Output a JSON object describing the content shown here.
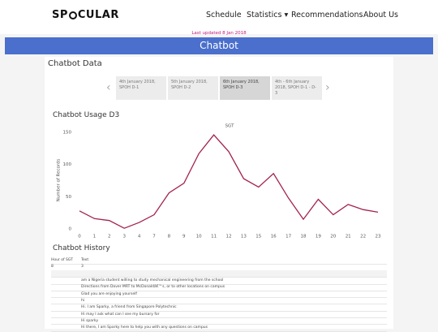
{
  "header": {
    "logo_left": "SP",
    "logo_right": "CULAR",
    "nav": [
      "Schedule",
      "Statistics",
      "Recommendations",
      "About Us"
    ]
  },
  "last_updated": "Last updated 8 Jan 2018",
  "banner": "Chatbot",
  "section_title": "Chatbot Data",
  "tabs": [
    "4th January 2018, SPOH D-1",
    "5th January 2018, SPOH D-2",
    "6th January 2018, SPOH D-3",
    "4th - 6th January 2018, SPOH D-1 - D-3"
  ],
  "chart_data": {
    "type": "line",
    "title": "Chatbot Usage D3",
    "subtitle": "SGT",
    "y_label": "Number of Records",
    "categories": [
      "0",
      "1",
      "2",
      "3",
      "4",
      "7",
      "8",
      "9",
      "10",
      "11",
      "12",
      "13",
      "15",
      "16",
      "17",
      "18",
      "19",
      "20",
      "21",
      "22",
      "23"
    ],
    "series": [
      {
        "name": "Records",
        "color": "#a3234f",
        "values": [
          28,
          16,
          13,
          1,
          10,
          22,
          56,
          71,
          117,
          146,
          120,
          78,
          65,
          86,
          48,
          15,
          46,
          22,
          38,
          30,
          26
        ]
      }
    ],
    "ylim": [
      0,
      150
    ],
    "yticks": [
      0,
      50,
      100,
      150
    ],
    "grid": false
  },
  "history": {
    "title": "Chatbot History",
    "columns": [
      "Hour of SGT",
      "Text"
    ],
    "first_row": [
      "8",
      "3"
    ],
    "texts": [
      "am a Nigeria student willing to study mechanical engineering from the school",
      "Directions from Dover MRT to McDonaldâ€™s, or to other locations on campus",
      "Glad you are enjoying yourself",
      "hi",
      "Hi. I am Sparky, a friend from Singapore Polytechnic",
      "Hi may I ask what can I see my bursary for",
      "Hi sparky",
      "Hi there, I am Sparky here to help you with any questions on campus"
    ]
  }
}
